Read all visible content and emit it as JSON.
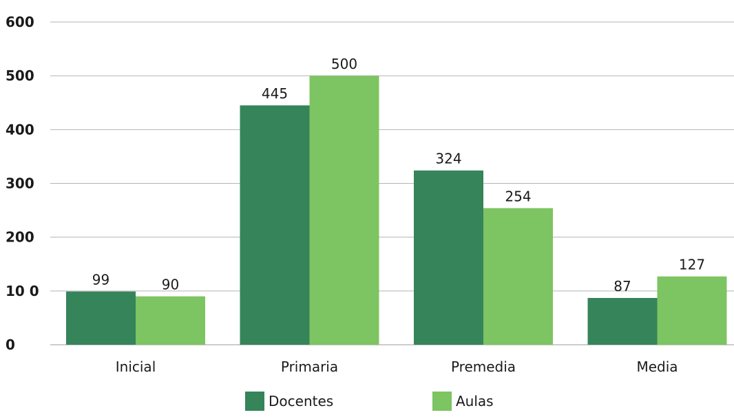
{
  "chart_data": {
    "type": "bar",
    "categories": [
      "Inicial",
      "Primaria",
      "Premedia",
      "Media"
    ],
    "series": [
      {
        "name": "Docentes",
        "values": [
          99,
          445,
          324,
          87
        ],
        "color": "#35845A"
      },
      {
        "name": "Aulas",
        "values": [
          90,
          500,
          254,
          127
        ],
        "color": "#7DC462"
      }
    ],
    "ylim": [
      0,
      600
    ],
    "y_ticks": [
      0,
      100,
      200,
      300,
      400,
      500,
      600
    ],
    "y_tick_labels": [
      "0",
      "10 0",
      "200",
      "300",
      "400",
      "500",
      "600"
    ],
    "grid": true,
    "legend_position": "bottom-center",
    "title": "",
    "xlabel": "",
    "ylabel": ""
  }
}
